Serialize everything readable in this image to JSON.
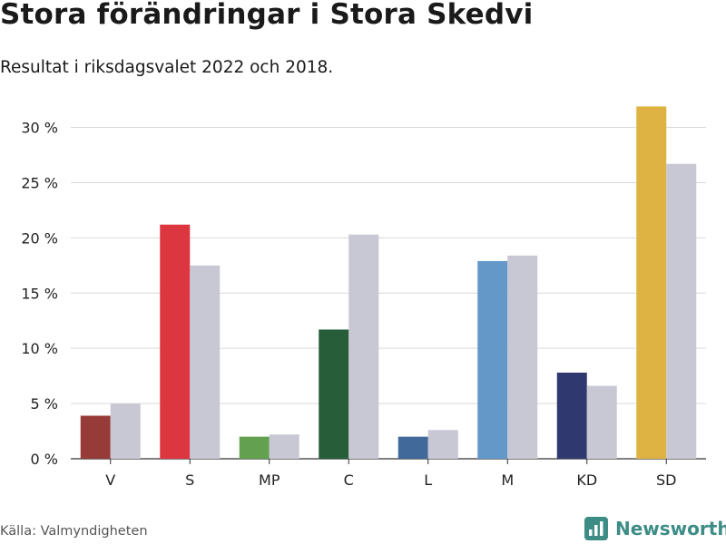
{
  "header": {
    "title": "Stora förändringar i Stora Skedvi",
    "subtitle": "Resultat i riksdagsvalet 2022 och 2018."
  },
  "footer": {
    "source": "Källa: Valmyndigheten",
    "brand": "Newsworthy"
  },
  "colors": {
    "previous_year": "#c8c7d4",
    "grid": "#d9d9d9",
    "brand": "#3d8c85"
  },
  "chart_data": {
    "type": "bar",
    "categories": [
      "V",
      "S",
      "MP",
      "C",
      "L",
      "M",
      "KD",
      "SD"
    ],
    "series": [
      {
        "values": [
          3.9,
          21.2,
          2.0,
          11.7,
          2.0,
          17.9,
          7.8,
          31.9
        ],
        "colors": [
          "#963b37",
          "#dc3641",
          "#63a050",
          "#275d38",
          "#41699a",
          "#6498c8",
          "#2f3970",
          "#dfb343"
        ]
      },
      {
        "values": [
          5.0,
          17.5,
          2.2,
          20.3,
          2.6,
          18.4,
          6.6,
          26.7
        ],
        "color": "#c8c7d4"
      }
    ],
    "ylim": [
      0,
      33
    ],
    "yticks": [
      0,
      5,
      10,
      15,
      20,
      25,
      30
    ],
    "ytick_labels": [
      "0 %",
      "5 %",
      "10 %",
      "15 %",
      "20 %",
      "25 %",
      "30 %"
    ],
    "grid": true
  }
}
